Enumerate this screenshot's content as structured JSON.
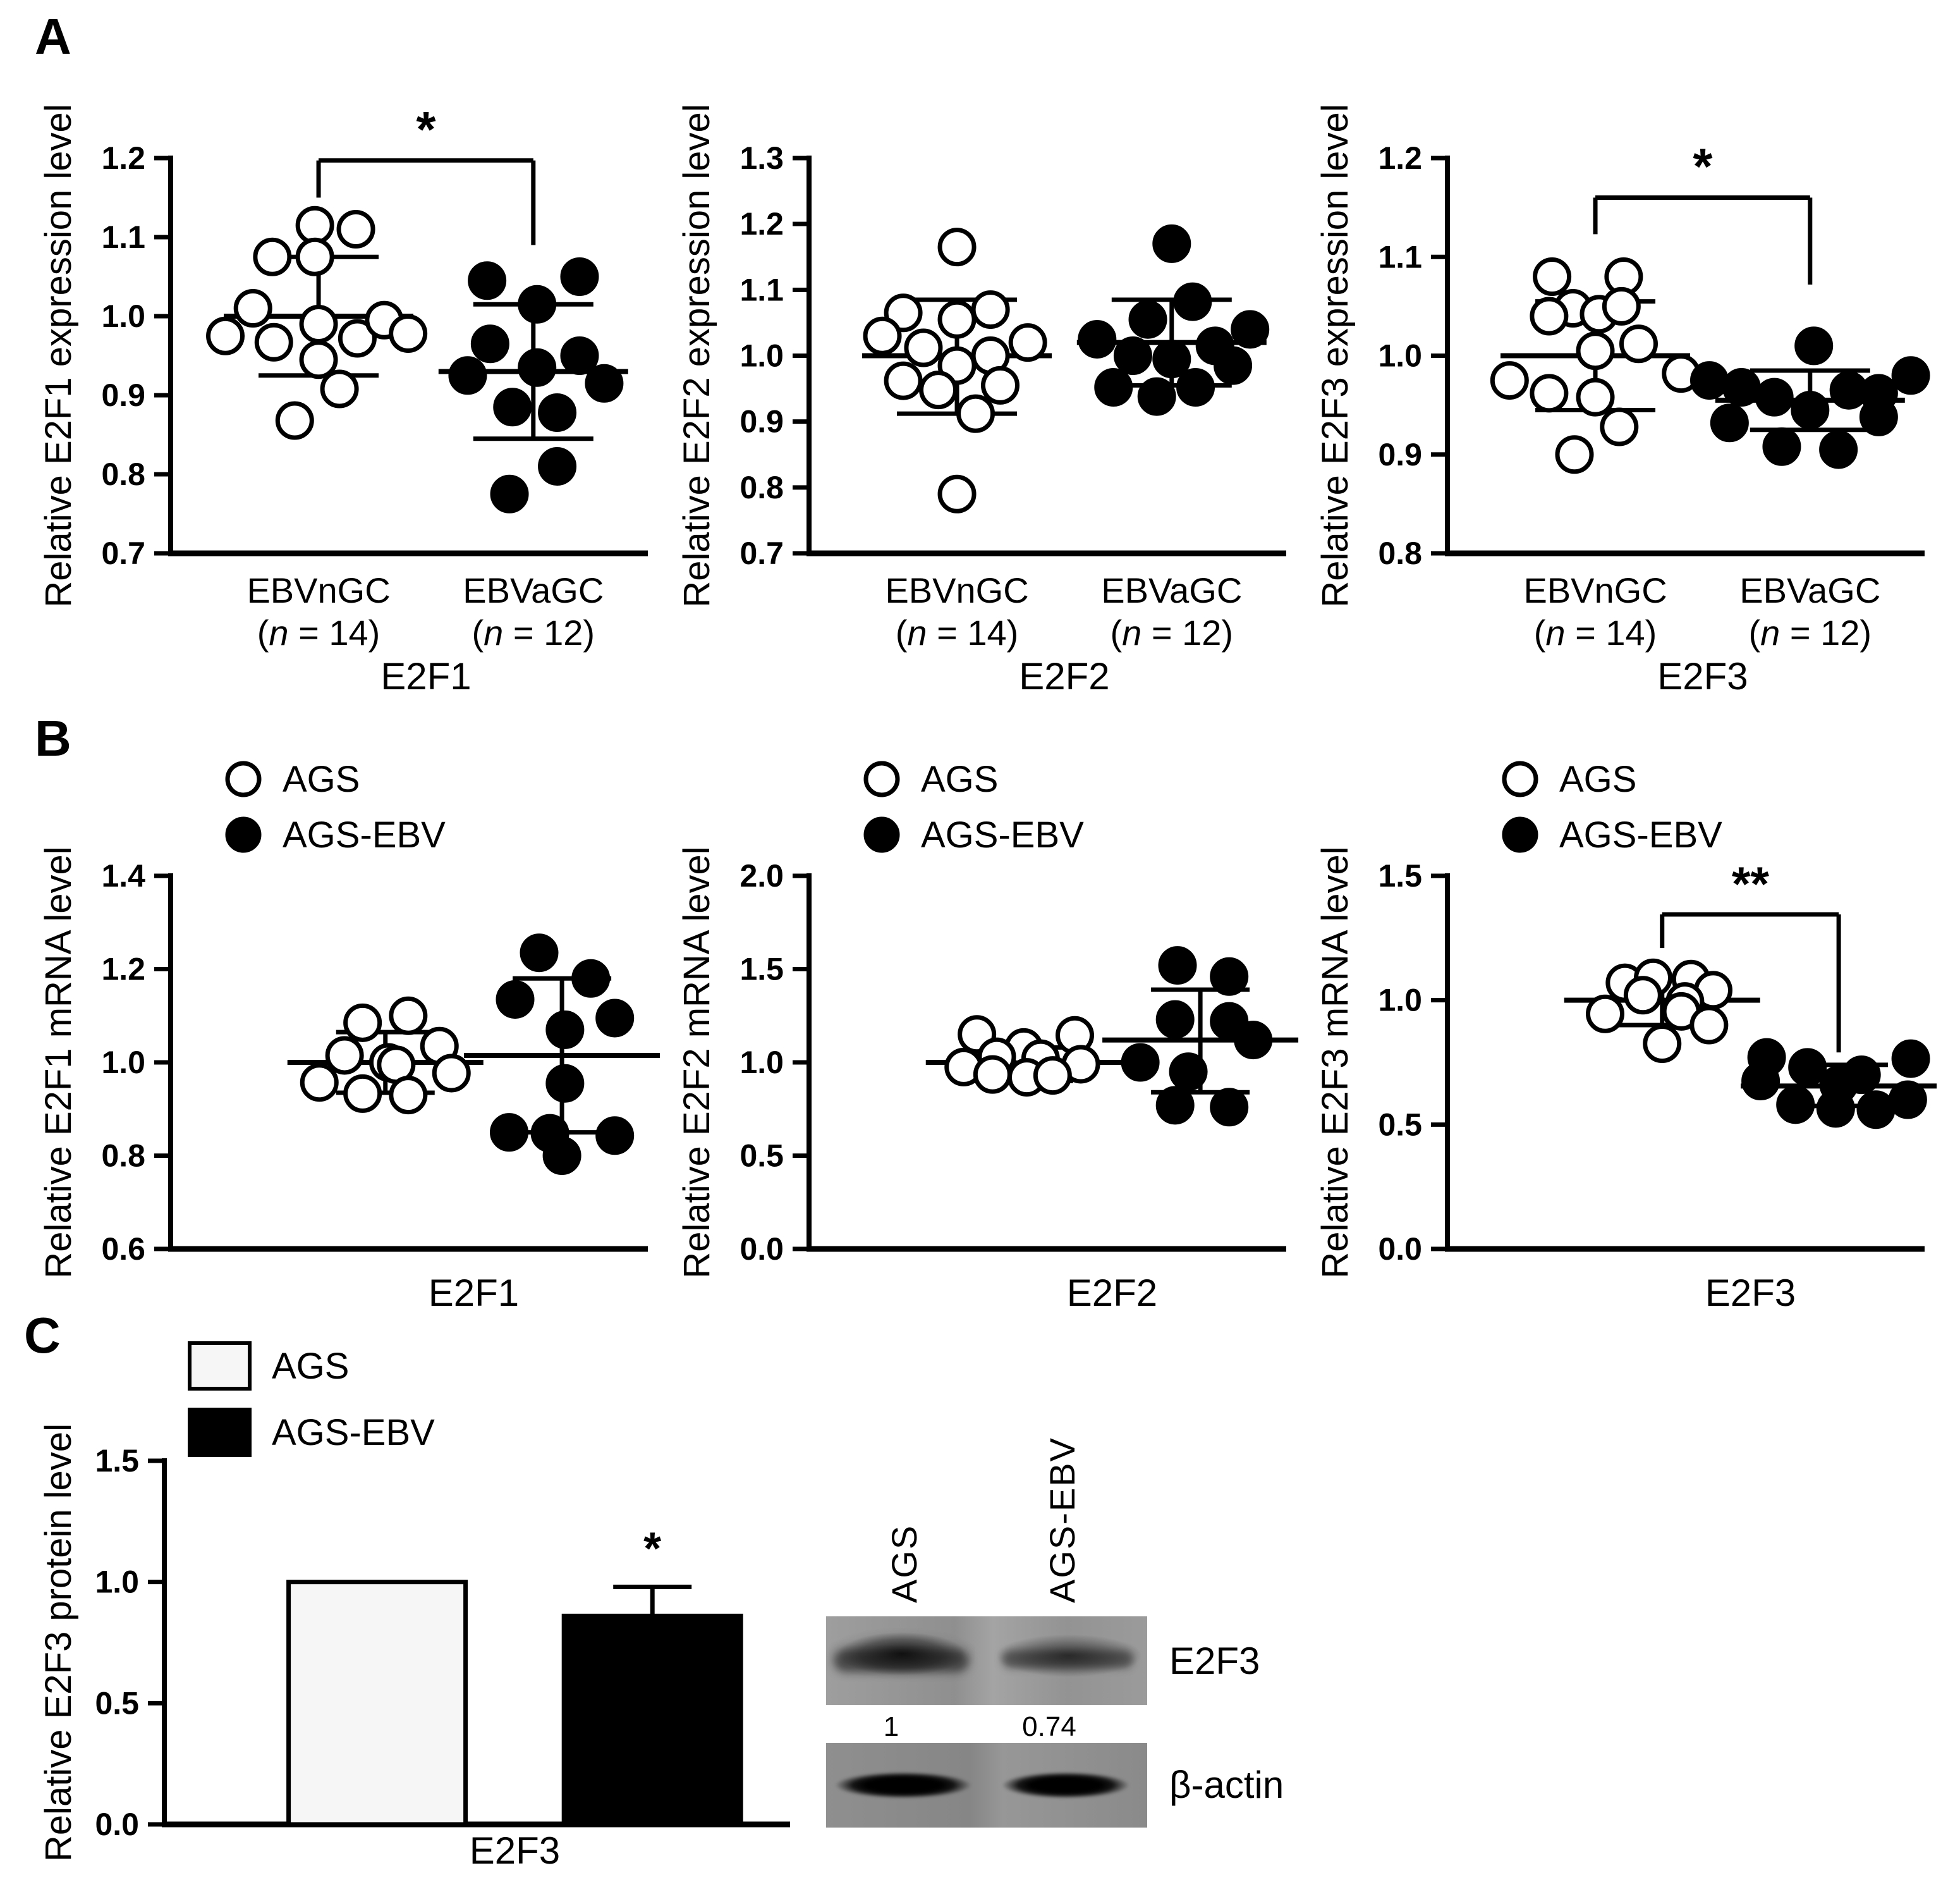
{
  "panels": {
    "a": "A",
    "b": "B",
    "c": "C"
  },
  "chart_data": [
    {
      "id": "a1",
      "type": "scatter",
      "ylabel": "Relative E2F1 expression level",
      "ylim": [
        0.7,
        1.2
      ],
      "yticks": [
        "0.7",
        "0.8",
        "0.9",
        "1.0",
        "1.1",
        "1.2"
      ],
      "xlabel": "E2F1",
      "legend": null,
      "grid": false,
      "groups": [
        {
          "name": "EBVnGC",
          "n": 14,
          "marker": "open",
          "mean": 1.0,
          "err": [
            0.925,
            1.075
          ],
          "points": [
            [
              -0.05,
              1.115
            ],
            [
              0.5,
              1.11
            ],
            [
              -0.62,
              1.075
            ],
            [
              -0.05,
              1.075
            ],
            [
              -0.88,
              1.01
            ],
            [
              -1.25,
              0.975
            ],
            [
              -0.6,
              0.967
            ],
            [
              0,
              0.99
            ],
            [
              0.52,
              0.972
            ],
            [
              0.88,
              0.995
            ],
            [
              1.2,
              0.978
            ],
            [
              0,
              0.945
            ],
            [
              0.28,
              0.908
            ],
            [
              -0.32,
              0.868
            ]
          ]
        },
        {
          "name": "EBVaGC",
          "n": 12,
          "marker": "filled",
          "mean": 0.93,
          "err": [
            0.845,
            1.015
          ],
          "points": [
            [
              -0.62,
              1.045
            ],
            [
              0.62,
              1.05
            ],
            [
              0.05,
              1.015
            ],
            [
              -0.58,
              0.965
            ],
            [
              0.62,
              0.95
            ],
            [
              -0.88,
              0.925
            ],
            [
              0.05,
              0.935
            ],
            [
              0.95,
              0.915
            ],
            [
              -0.28,
              0.885
            ],
            [
              0.32,
              0.878
            ],
            [
              0.32,
              0.81
            ],
            [
              -0.32,
              0.775
            ]
          ]
        }
      ],
      "sig": {
        "label": "*",
        "y": 1.197,
        "left_to": 1.15,
        "right_to": 1.09
      }
    },
    {
      "id": "a2",
      "type": "scatter",
      "ylabel": "Relative E2F2 expression level",
      "ylim": [
        0.7,
        1.3
      ],
      "yticks": [
        "0.7",
        "0.8",
        "0.9",
        "1.0",
        "1.1",
        "1.2",
        "1.3"
      ],
      "xlabel": "E2F2",
      "legend": null,
      "grid": false,
      "groups": [
        {
          "name": "EBVnGC",
          "n": 14,
          "marker": "open",
          "mean": 1.0,
          "err": [
            0.912,
            1.085
          ],
          "points": [
            [
              0,
              1.165
            ],
            [
              -0.72,
              1.065
            ],
            [
              -1.0,
              1.03
            ],
            [
              -0.45,
              1.012
            ],
            [
              0,
              1.055
            ],
            [
              0.45,
              1.07
            ],
            [
              0.95,
              1.02
            ],
            [
              0.45,
              1.0
            ],
            [
              0,
              0.985
            ],
            [
              -0.72,
              0.962
            ],
            [
              -0.25,
              0.948
            ],
            [
              0.58,
              0.955
            ],
            [
              0.25,
              0.912
            ],
            [
              0,
              0.79
            ]
          ]
        },
        {
          "name": "EBVaGC",
          "n": 12,
          "marker": "filled",
          "mean": 1.02,
          "err": [
            0.955,
            1.085
          ],
          "points": [
            [
              0,
              1.17
            ],
            [
              0.28,
              1.082
            ],
            [
              -0.32,
              1.055
            ],
            [
              -1.0,
              1.025
            ],
            [
              -0.52,
              1.0
            ],
            [
              0,
              0.995
            ],
            [
              0.58,
              1.015
            ],
            [
              1.05,
              1.04
            ],
            [
              0.82,
              0.985
            ],
            [
              -0.78,
              0.952
            ],
            [
              -0.2,
              0.938
            ],
            [
              0.32,
              0.952
            ]
          ]
        }
      ],
      "sig": null
    },
    {
      "id": "a3",
      "type": "scatter",
      "ylabel": "Relative E2F3 expression level",
      "ylim": [
        0.8,
        1.2
      ],
      "yticks": [
        "0.8",
        "0.9",
        "1.0",
        "1.1",
        "1.2"
      ],
      "xlabel": "E2F3",
      "legend": null,
      "grid": false,
      "groups": [
        {
          "name": "EBVnGC",
          "n": 14,
          "marker": "open",
          "mean": 1.0,
          "err": [
            0.945,
            1.055
          ],
          "points": [
            [
              -0.58,
              1.08
            ],
            [
              0.38,
              1.08
            ],
            [
              -0.3,
              1.048
            ],
            [
              -0.62,
              1.04
            ],
            [
              0.05,
              1.042
            ],
            [
              0.35,
              1.05
            ],
            [
              0,
              1.005
            ],
            [
              0.58,
              1.012
            ],
            [
              1.15,
              0.982
            ],
            [
              -1.15,
              0.975
            ],
            [
              -0.62,
              0.962
            ],
            [
              0,
              0.958
            ],
            [
              0.32,
              0.928
            ],
            [
              -0.28,
              0.9
            ]
          ]
        },
        {
          "name": "EBVaGC",
          "n": 12,
          "marker": "filled",
          "mean": 0.955,
          "err": [
            0.925,
            0.985
          ],
          "points": [
            [
              0.05,
              1.01
            ],
            [
              1.35,
              0.98
            ],
            [
              -1.35,
              0.975
            ],
            [
              -0.92,
              0.968
            ],
            [
              0.52,
              0.965
            ],
            [
              -0.48,
              0.958
            ],
            [
              0.92,
              0.962
            ],
            [
              0,
              0.945
            ],
            [
              -1.08,
              0.932
            ],
            [
              0.92,
              0.938
            ],
            [
              -0.38,
              0.908
            ],
            [
              0.38,
              0.905
            ]
          ]
        }
      ],
      "sig": {
        "label": "*",
        "y": 1.16,
        "left_to": 1.123,
        "right_to": 1.072
      }
    },
    {
      "id": "b1",
      "type": "scatter",
      "ylabel": "Relative E2F1 mRNA level",
      "ylim": [
        0.6,
        1.4
      ],
      "yticks": [
        "0.6",
        "0.8",
        "1.0",
        "1.2",
        "1.4"
      ],
      "xlabel": "E2F1",
      "legend": [
        {
          "label": "AGS",
          "marker": "open"
        },
        {
          "label": "AGS-EBV",
          "marker": "filled"
        }
      ],
      "grid": false,
      "groups": [
        {
          "name": "AGS",
          "n": null,
          "marker": "open",
          "mean": 1.0,
          "err": [
            0.935,
            1.065
          ],
          "points": [
            [
              -0.38,
              1.085
            ],
            [
              0.38,
              1.1
            ],
            [
              0.9,
              1.035
            ],
            [
              -0.68,
              1.015
            ],
            [
              0.05,
              1.0
            ],
            [
              0.18,
              0.995
            ],
            [
              1.1,
              0.977
            ],
            [
              -1.1,
              0.957
            ],
            [
              -0.38,
              0.933
            ],
            [
              0.38,
              0.93
            ]
          ]
        },
        {
          "name": "AGS-EBV",
          "n": null,
          "marker": "filled",
          "mean": 1.015,
          "err": [
            0.85,
            1.18
          ],
          "points": [
            [
              -0.38,
              1.235
            ],
            [
              0.48,
              1.18
            ],
            [
              -0.78,
              1.135
            ],
            [
              0.05,
              1.07
            ],
            [
              0.88,
              1.095
            ],
            [
              0.05,
              0.955
            ],
            [
              -0.88,
              0.85
            ],
            [
              0.88,
              0.843
            ],
            [
              -0.2,
              0.848
            ],
            [
              0,
              0.8
            ]
          ]
        }
      ],
      "sig": null
    },
    {
      "id": "b2",
      "type": "scatter",
      "ylabel": "Relative E2F2 mRNA level",
      "ylim": [
        0.0,
        2.0
      ],
      "yticks": [
        "0.0",
        "0.5",
        "1.0",
        "1.5",
        "2.0"
      ],
      "xlabel": "E2F2",
      "legend": [
        {
          "label": "AGS",
          "marker": "open"
        },
        {
          "label": "AGS-EBV",
          "marker": "filled"
        }
      ],
      "grid": false,
      "groups": [
        {
          "name": "AGS",
          "n": null,
          "marker": "open",
          "mean": 1.0,
          "err": [
            0.9,
            1.08
          ],
          "points": [
            [
              -0.78,
              1.15
            ],
            [
              0.85,
              1.145
            ],
            [
              0,
              1.08
            ],
            [
              -0.45,
              1.03
            ],
            [
              0.28,
              1.02
            ],
            [
              -1.0,
              0.975
            ],
            [
              0.95,
              0.99
            ],
            [
              -0.52,
              0.935
            ],
            [
              0.05,
              0.92
            ],
            [
              0.48,
              0.93
            ]
          ]
        },
        {
          "name": "AGS-EBV",
          "n": null,
          "marker": "filled",
          "mean": 1.12,
          "err": [
            0.84,
            1.39
          ],
          "points": [
            [
              -0.38,
              1.52
            ],
            [
              0.48,
              1.46
            ],
            [
              -0.42,
              1.23
            ],
            [
              0.48,
              1.22
            ],
            [
              0.88,
              1.12
            ],
            [
              -1.0,
              1.0
            ],
            [
              -0.2,
              0.95
            ],
            [
              -0.42,
              0.77
            ],
            [
              0.48,
              0.76
            ]
          ]
        }
      ],
      "sig": null
    },
    {
      "id": "b3",
      "type": "scatter",
      "ylabel": "Relative E2F3 mRNA level",
      "ylim": [
        0.0,
        1.5
      ],
      "yticks": [
        "0.0",
        "0.5",
        "1.0",
        "1.5"
      ],
      "xlabel": "E2F3",
      "legend": [
        {
          "label": "AGS",
          "marker": "open"
        },
        {
          "label": "AGS-EBV",
          "marker": "filled"
        }
      ],
      "grid": false,
      "groups": [
        {
          "name": "AGS",
          "n": null,
          "marker": "open",
          "mean": 1.0,
          "err": [
            0.9,
            1.085
          ],
          "points": [
            [
              -0.62,
              1.07
            ],
            [
              -0.15,
              1.09
            ],
            [
              0.48,
              1.085
            ],
            [
              0.85,
              1.04
            ],
            [
              -0.32,
              1.02
            ],
            [
              0.38,
              0.995
            ],
            [
              -0.95,
              0.945
            ],
            [
              0.32,
              0.955
            ],
            [
              0.78,
              0.9
            ],
            [
              0,
              0.825
            ]
          ]
        },
        {
          "name": "AGS-EBV",
          "n": null,
          "marker": "filled",
          "mean": 0.655,
          "err": [
            0.575,
            0.74
          ],
          "points": [
            [
              -1.2,
              0.77
            ],
            [
              1.2,
              0.765
            ],
            [
              -0.52,
              0.73
            ],
            [
              0.38,
              0.7
            ],
            [
              -1.3,
              0.675
            ],
            [
              0,
              0.66
            ],
            [
              -0.72,
              0.58
            ],
            [
              -0.05,
              0.565
            ],
            [
              0.62,
              0.56
            ],
            [
              1.15,
              0.6
            ]
          ]
        }
      ],
      "sig": {
        "label": "**",
        "y": 1.345,
        "left_to": 1.21,
        "right_to": 0.79
      }
    },
    {
      "id": "c",
      "type": "bar",
      "ylabel": "Relative E2F3 protein level",
      "ylim": [
        0.0,
        1.5
      ],
      "yticks": [
        "0.0",
        "0.5",
        "1.0",
        "1.5"
      ],
      "xlabel": "E2F3",
      "legend": [
        {
          "label": "AGS",
          "marker": "white-box"
        },
        {
          "label": "AGS-EBV",
          "marker": "black-box"
        }
      ],
      "grid": false,
      "bars": [
        {
          "name": "AGS",
          "value": 1.0,
          "fill": "white",
          "err_hi": null,
          "sig": null
        },
        {
          "name": "AGS-EBV",
          "value": 0.86,
          "fill": "black",
          "err_hi": 0.98,
          "sig": "*"
        }
      ]
    }
  ],
  "western_blot": {
    "lane_labels": [
      "AGS",
      "AGS-EBV"
    ],
    "e2f3_row": {
      "label": "E2F3",
      "values": [
        "1",
        "0.74"
      ]
    },
    "actin_row": {
      "label": "β-actin"
    }
  },
  "colors": {
    "ink": "#000000",
    "open_fill": "#ffffff",
    "bar_white": "#f6f6f6",
    "bar_black": "#000000",
    "blot_bg": "#939393"
  }
}
